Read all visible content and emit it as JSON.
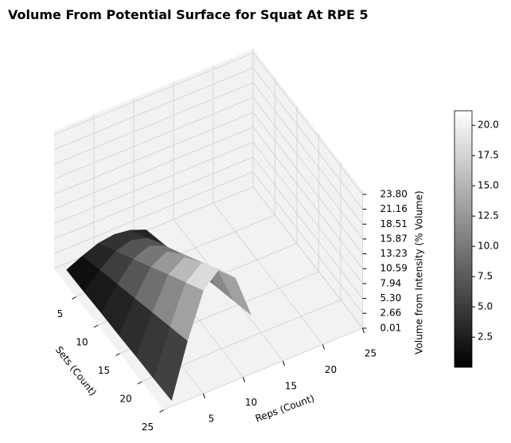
{
  "chart_data": {
    "type": "surface3d",
    "title": "Volume From Potential Surface for Squat At RPE 5",
    "x_label": "Sets (Count)",
    "y_label": "Reps (Count)",
    "z_label": "Volume from Intensity (% Volume)",
    "sets": [
      1,
      5,
      9,
      13,
      17,
      21,
      25
    ],
    "reps": [
      1,
      3,
      5,
      7,
      9,
      11
    ],
    "z": [
      [
        0.2,
        1.5,
        2.6,
        3,
        2.6,
        1.5
      ],
      [
        0.3,
        3,
        5.2,
        6,
        5.2,
        3
      ],
      [
        0.5,
        4.5,
        7.8,
        9,
        7.8,
        4.5
      ],
      [
        0.6,
        6,
        10.4,
        12,
        10.4,
        6
      ],
      [
        0.8,
        7.5,
        13.1,
        15,
        13.1,
        7.5
      ],
      [
        0.9,
        9,
        15.7,
        18,
        15.7,
        9
      ],
      [
        1.1,
        10.5,
        18.3,
        21,
        18.3,
        10.5
      ]
    ],
    "xlim": [
      0,
      25
    ],
    "xticks": [
      5,
      10,
      15,
      20,
      25
    ],
    "ylim": [
      0,
      25
    ],
    "yticks": [
      5,
      10,
      15,
      20,
      25
    ],
    "zlim": [
      0,
      24.5
    ],
    "zticks": [
      0.01,
      2.66,
      {
        "value": 5.3,
        "label": "5.30"
      },
      7.94,
      10.59,
      13.23,
      15.87,
      18.51,
      21.16,
      {
        "value": 23.8,
        "label": "23.80"
      }
    ],
    "clim": [
      0.01,
      21.2
    ],
    "cticks": [
      2.5,
      {
        "value": 5,
        "label": "5.0"
      },
      7.5,
      {
        "value": 10,
        "label": "10.0"
      },
      12.5,
      {
        "value": 15,
        "label": "15.0"
      },
      17.5,
      {
        "value": 20,
        "label": "20.0"
      }
    ],
    "grid": true
  }
}
